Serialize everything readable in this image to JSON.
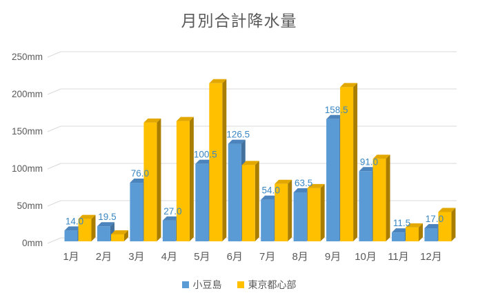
{
  "title": "月別合計降水量",
  "chart_data": {
    "type": "bar",
    "style": "3d-clustered-column",
    "title": "月別合計降水量",
    "categories": [
      "1月",
      "2月",
      "3月",
      "4月",
      "5月",
      "6月",
      "7月",
      "8月",
      "9月",
      "10月",
      "11月",
      "12月"
    ],
    "series": [
      {
        "name": "小豆島",
        "color": "#5B9BD5",
        "top_color": "#4B84BC",
        "side_color": "#41719C",
        "values": [
          14.0,
          19.5,
          76.0,
          27.0,
          100.5,
          126.5,
          54.0,
          63.5,
          158.5,
          91.0,
          11.5,
          17.0
        ],
        "data_labels_shown": true
      },
      {
        "name": "東京都心部",
        "color": "#FFC000",
        "top_color": "#E2A800",
        "side_color": "#A97E00",
        "values": [
          29,
          9,
          154,
          156,
          205,
          99,
          74.5,
          69,
          200,
          107,
          18,
          38
        ],
        "data_labels_shown": false
      }
    ],
    "y_ticks": [
      "0mm",
      "50mm",
      "100mm",
      "150mm",
      "200mm",
      "250mm"
    ],
    "y_tick_values": [
      0,
      50,
      100,
      150,
      200,
      250
    ],
    "ylim": [
      0,
      250
    ],
    "y_unit": "mm",
    "grid": true,
    "legend_position": "bottom",
    "label_color": "#3A87C4",
    "axis_text_color": "#595959",
    "grid_color": "#D9D9D9",
    "background": "#FFFFFF"
  }
}
